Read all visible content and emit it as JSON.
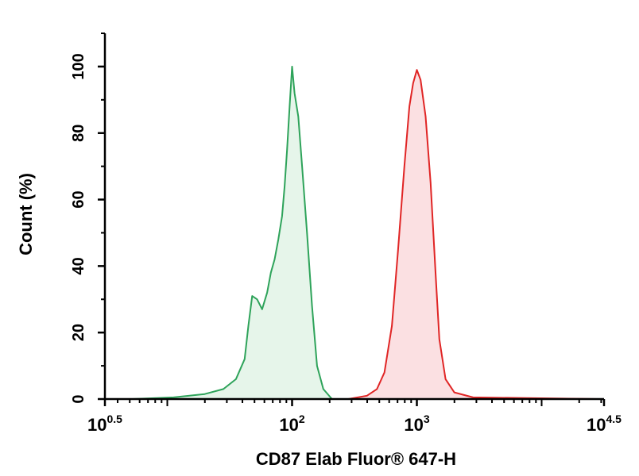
{
  "chart_data": {
    "type": "area",
    "xlabel": "CD87 Elab Fluor® 647-H",
    "ylabel": "Count (%)",
    "x_scale": "log10",
    "xlim": [
      0.5,
      4.5
    ],
    "ylim": [
      0,
      110
    ],
    "grid": false,
    "legend": "none",
    "x_ticks": [
      {
        "base": "10",
        "exp": "0.5",
        "value": 0.5
      },
      {
        "base": "10",
        "exp": "2",
        "value": 2
      },
      {
        "base": "10",
        "exp": "3",
        "value": 3
      },
      {
        "base": "10",
        "exp": "4.5",
        "value": 4.5
      }
    ],
    "y_ticks": [
      {
        "label": "0",
        "value": 0
      },
      {
        "label": "20",
        "value": 20
      },
      {
        "label": "40",
        "value": 40
      },
      {
        "label": "60",
        "value": 60
      },
      {
        "label": "80",
        "value": 80
      },
      {
        "label": "100",
        "value": 100
      }
    ],
    "series": [
      {
        "color": "#2ea35a",
        "fill": "#e6f5ea",
        "points": [
          [
            0.72,
            0
          ],
          [
            1.05,
            0.5
          ],
          [
            1.3,
            1.5
          ],
          [
            1.45,
            3
          ],
          [
            1.55,
            6
          ],
          [
            1.62,
            12
          ],
          [
            1.65,
            22
          ],
          [
            1.68,
            31
          ],
          [
            1.72,
            30
          ],
          [
            1.76,
            27
          ],
          [
            1.8,
            32
          ],
          [
            1.83,
            38
          ],
          [
            1.86,
            42
          ],
          [
            1.89,
            48
          ],
          [
            1.92,
            55
          ],
          [
            1.94,
            64
          ],
          [
            1.96,
            75
          ],
          [
            1.98,
            88
          ],
          [
            2.0,
            100
          ],
          [
            2.02,
            92
          ],
          [
            2.05,
            85
          ],
          [
            2.08,
            70
          ],
          [
            2.12,
            50
          ],
          [
            2.16,
            28
          ],
          [
            2.2,
            10
          ],
          [
            2.25,
            3
          ],
          [
            2.32,
            0
          ]
        ]
      },
      {
        "color": "#e02525",
        "fill": "#fbe0e2",
        "points": [
          [
            2.45,
            0
          ],
          [
            2.6,
            1
          ],
          [
            2.68,
            3
          ],
          [
            2.74,
            8
          ],
          [
            2.8,
            22
          ],
          [
            2.85,
            45
          ],
          [
            2.9,
            70
          ],
          [
            2.94,
            88
          ],
          [
            2.97,
            95
          ],
          [
            3.0,
            99
          ],
          [
            3.03,
            96
          ],
          [
            3.07,
            85
          ],
          [
            3.11,
            65
          ],
          [
            3.15,
            38
          ],
          [
            3.18,
            18
          ],
          [
            3.23,
            6
          ],
          [
            3.3,
            2
          ],
          [
            3.45,
            0.5
          ],
          [
            4.45,
            0
          ]
        ]
      }
    ]
  }
}
